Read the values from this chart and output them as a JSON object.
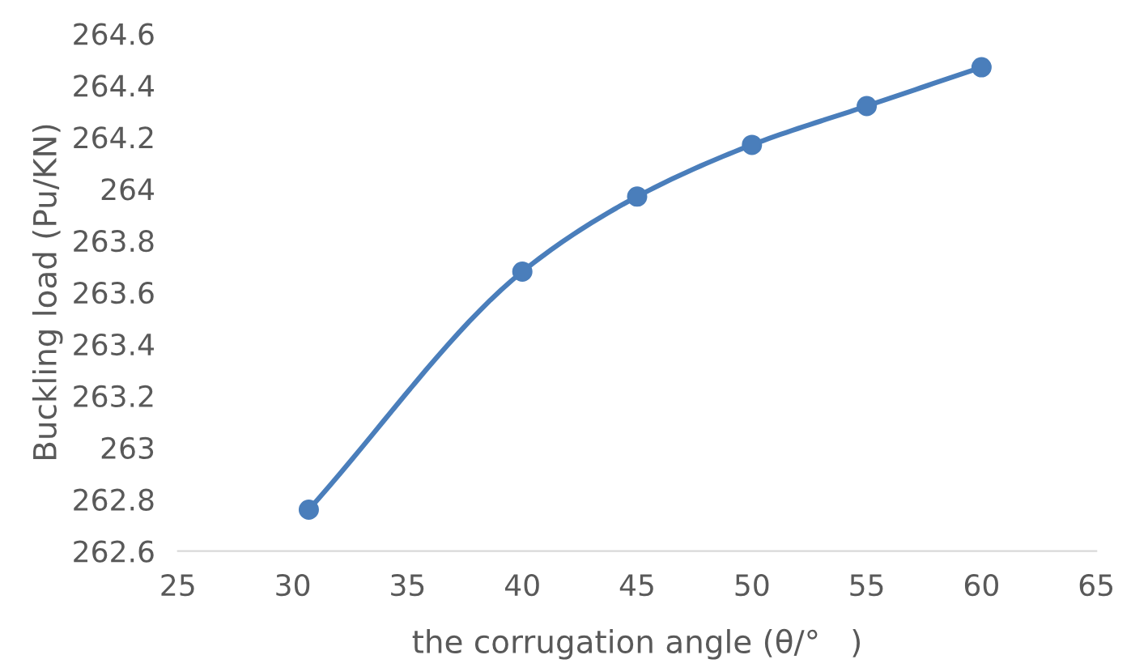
{
  "chart_data": {
    "type": "line",
    "xlabel": "the corrugation angle (θ/°   )",
    "ylabel": "Buckling load (Pu/KN)",
    "x": [
      30.7,
      40,
      45,
      50,
      55,
      60
    ],
    "series": [
      {
        "color": "#4a7ebb",
        "values": [
          262.76,
          263.68,
          263.97,
          264.17,
          264.32,
          264.47
        ]
      }
    ],
    "xlim": [
      25,
      65
    ],
    "xticks": [
      25,
      30,
      35,
      40,
      45,
      50,
      55,
      60,
      65
    ],
    "ylim": [
      262.6,
      264.6
    ],
    "yticks": [
      262.6,
      262.8,
      263,
      263.2,
      263.4,
      263.6,
      263.8,
      264,
      264.2,
      264.4,
      264.6
    ],
    "grid": false,
    "legend": false,
    "marker": "circle",
    "line_style": "solid"
  }
}
